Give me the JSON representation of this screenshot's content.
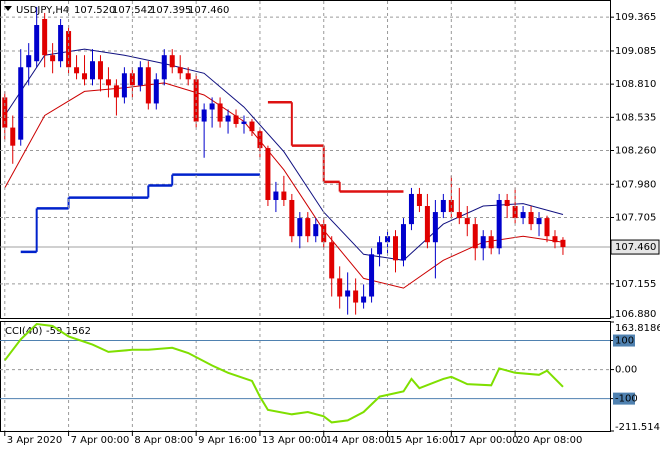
{
  "chart_data": [
    {
      "type": "candlestick",
      "title": "USDJPY,H4",
      "header_ohlc": [
        {
          "value": 107.52,
          "label": "107.520"
        },
        {
          "value": 107.542,
          "label": "107.542"
        },
        {
          "value": 107.395,
          "label": "107.395"
        },
        {
          "value": 107.46,
          "label": "107.460"
        }
      ],
      "open": [
        108.7,
        108.45,
        108.35,
        108.95,
        109.0,
        109.35,
        109.05,
        109.0,
        109.25,
        108.95,
        108.9,
        108.85,
        109.0,
        108.85,
        108.8,
        108.7,
        108.9,
        108.8,
        108.95,
        108.65,
        108.85,
        109.05,
        108.95,
        108.9,
        108.85,
        108.5,
        108.6,
        108.65,
        108.5,
        108.55,
        108.48,
        108.5,
        108.42,
        108.28,
        107.85,
        107.92,
        107.85,
        107.55,
        107.7,
        107.55,
        107.65,
        107.5,
        107.2,
        107.05,
        107.1,
        107.0,
        107.05,
        107.4,
        107.5,
        107.55,
        107.35,
        107.65,
        107.9,
        107.8,
        107.5,
        107.75,
        107.85,
        107.75,
        107.7,
        107.65,
        107.45,
        107.55,
        107.45,
        107.85,
        107.8,
        107.7,
        107.75,
        107.65,
        107.7,
        107.55,
        107.52
      ],
      "high": [
        108.75,
        108.55,
        109.1,
        109.15,
        109.45,
        109.4,
        109.15,
        109.35,
        109.3,
        109.05,
        109.05,
        109.1,
        109.05,
        108.95,
        108.85,
        108.95,
        108.95,
        109.0,
        109.0,
        108.9,
        109.1,
        109.1,
        109.05,
        108.95,
        108.9,
        108.65,
        108.7,
        108.7,
        108.6,
        108.6,
        108.55,
        108.52,
        108.45,
        108.3,
        108.0,
        108.05,
        107.9,
        107.75,
        107.75,
        107.7,
        107.7,
        107.55,
        107.3,
        107.25,
        107.2,
        107.15,
        107.45,
        107.55,
        107.6,
        107.6,
        107.7,
        107.95,
        107.95,
        107.9,
        107.85,
        107.9,
        108.05,
        107.95,
        107.8,
        107.7,
        107.6,
        107.6,
        107.9,
        107.9,
        107.95,
        107.8,
        107.8,
        107.75,
        107.72,
        107.6,
        107.542
      ],
      "low": [
        108.35,
        108.15,
        108.3,
        108.8,
        108.95,
        108.95,
        108.9,
        108.95,
        108.9,
        108.85,
        108.8,
        108.8,
        108.75,
        108.7,
        108.55,
        108.65,
        108.7,
        108.75,
        108.6,
        108.6,
        108.8,
        108.9,
        108.85,
        108.8,
        108.45,
        108.2,
        108.45,
        108.45,
        108.4,
        108.45,
        108.4,
        108.38,
        108.2,
        107.8,
        107.75,
        107.8,
        107.5,
        107.45,
        107.5,
        107.5,
        107.45,
        107.05,
        106.95,
        106.9,
        106.9,
        106.95,
        107.0,
        107.3,
        107.4,
        107.25,
        107.3,
        107.6,
        107.75,
        107.45,
        107.2,
        107.7,
        107.7,
        107.65,
        107.55,
        107.35,
        107.35,
        107.4,
        107.4,
        107.7,
        107.65,
        107.65,
        107.6,
        107.55,
        107.5,
        107.45,
        107.395
      ],
      "close": [
        108.45,
        108.3,
        108.95,
        109.05,
        109.3,
        109.05,
        109.0,
        109.3,
        108.95,
        108.9,
        108.85,
        109.0,
        108.85,
        108.8,
        108.7,
        108.9,
        108.8,
        108.95,
        108.65,
        108.85,
        109.05,
        108.95,
        108.9,
        108.85,
        108.5,
        108.6,
        108.65,
        108.5,
        108.55,
        108.48,
        108.5,
        108.42,
        108.28,
        107.85,
        107.92,
        107.85,
        107.55,
        107.7,
        107.55,
        107.65,
        107.5,
        107.2,
        107.05,
        107.1,
        107.0,
        107.05,
        107.4,
        107.5,
        107.55,
        107.35,
        107.65,
        107.9,
        107.8,
        107.5,
        107.75,
        107.85,
        107.75,
        107.7,
        107.65,
        107.45,
        107.55,
        107.45,
        107.85,
        107.8,
        107.7,
        107.75,
        107.65,
        107.7,
        107.55,
        107.5,
        107.46
      ],
      "up_color": "#0000cc",
      "down_color": "#e00000",
      "series": [
        {
          "color": "#101080",
          "x": [
            0,
            5,
            10,
            15,
            20,
            25,
            30,
            35,
            40,
            45,
            50,
            55,
            60,
            65,
            70
          ],
          "values": [
            108.55,
            109.05,
            109.1,
            109.05,
            108.98,
            108.9,
            108.62,
            108.25,
            107.75,
            107.4,
            107.35,
            107.65,
            107.8,
            107.82,
            107.73
          ]
        },
        {
          "color": "#cc0000",
          "x": [
            0,
            5,
            10,
            15,
            20,
            25,
            30,
            35,
            40,
            45,
            50,
            55,
            60,
            65,
            70
          ],
          "values": [
            107.95,
            108.55,
            108.75,
            108.78,
            108.82,
            108.72,
            108.5,
            108.1,
            107.6,
            107.2,
            107.12,
            107.35,
            107.5,
            107.55,
            107.5
          ]
        }
      ],
      "steps": [
        {
          "color": "#0022cc",
          "x": [
            [
              2,
              4
            ],
            [
              4,
              8
            ],
            [
              8,
              18
            ],
            [
              18,
              21
            ],
            [
              21,
              32
            ]
          ],
          "values": [
            107.42,
            107.78,
            107.87,
            107.97,
            108.06
          ]
        },
        {
          "color": "#dd1111",
          "x": [
            [
              33,
              36
            ],
            [
              36,
              40
            ],
            [
              40,
              42
            ],
            [
              42,
              50
            ]
          ],
          "values": [
            108.66,
            108.3,
            108.0,
            107.92
          ]
        }
      ],
      "last_price": {
        "value": 107.46,
        "label": "107.460"
      },
      "xlim": [
        -0.6,
        75.9
      ],
      "ylim": [
        106.872,
        109.499
      ],
      "yticks": [
        109.365,
        109.085,
        {
          "value": 108.81,
          "label": "108.810"
        },
        108.535,
        {
          "value": 108.26,
          "label": "108.260"
        },
        {
          "value": 107.98,
          "label": "107.980"
        },
        107.705,
        107.155,
        {
          "value": 106.88,
          "label": "106.880"
        }
      ],
      "grid": true
    },
    {
      "type": "line",
      "title": "CCI(40)",
      "color": "#7fdf00",
      "x": [
        0,
        2,
        4,
        6,
        8,
        11,
        13,
        16,
        18,
        21,
        23,
        26,
        28,
        31,
        32,
        33,
        36,
        38,
        40,
        41,
        43,
        45,
        47,
        50,
        51,
        52,
        55,
        56,
        58,
        61,
        62,
        64,
        67,
        68,
        70
      ],
      "values": [
        32,
        104,
        157,
        150,
        114,
        86,
        61,
        68,
        68,
        75,
        57,
        14,
        -11,
        -39,
        -93,
        -139,
        -154,
        -146,
        -161,
        -182,
        -175,
        -146,
        -93,
        -75,
        -32,
        -64,
        -32,
        -25,
        -50,
        -54,
        4,
        -11,
        -18,
        -4,
        -59.1562
      ],
      "levels": [
        100,
        -100
      ],
      "level_color": "#4f81b0",
      "xlim": [
        -0.6,
        75.9
      ],
      "ylim": [
        -211.5142,
        163.8186
      ],
      "yticks": [
        163.8186,
        100,
        {
          "value": 0,
          "label": "0.00"
        },
        -100,
        -211.5142
      ],
      "xticks": [
        {
          "value": 0,
          "label": "3 Apr 2020"
        },
        {
          "value": 8,
          "label": "7 Apr 00:00"
        },
        {
          "value": 16,
          "label": "8 Apr 08:00"
        },
        {
          "value": 24,
          "label": "9 Apr 16:00"
        },
        {
          "value": 32,
          "label": "13 Apr 00:00"
        },
        {
          "value": 40,
          "label": "14 Apr 08:00"
        },
        {
          "value": 48,
          "label": "15 Apr 16:00"
        },
        {
          "value": 56,
          "label": "17 Apr 00:00"
        },
        {
          "value": 64,
          "label": "20 Apr 08:00"
        }
      ],
      "grid": true
    }
  ]
}
